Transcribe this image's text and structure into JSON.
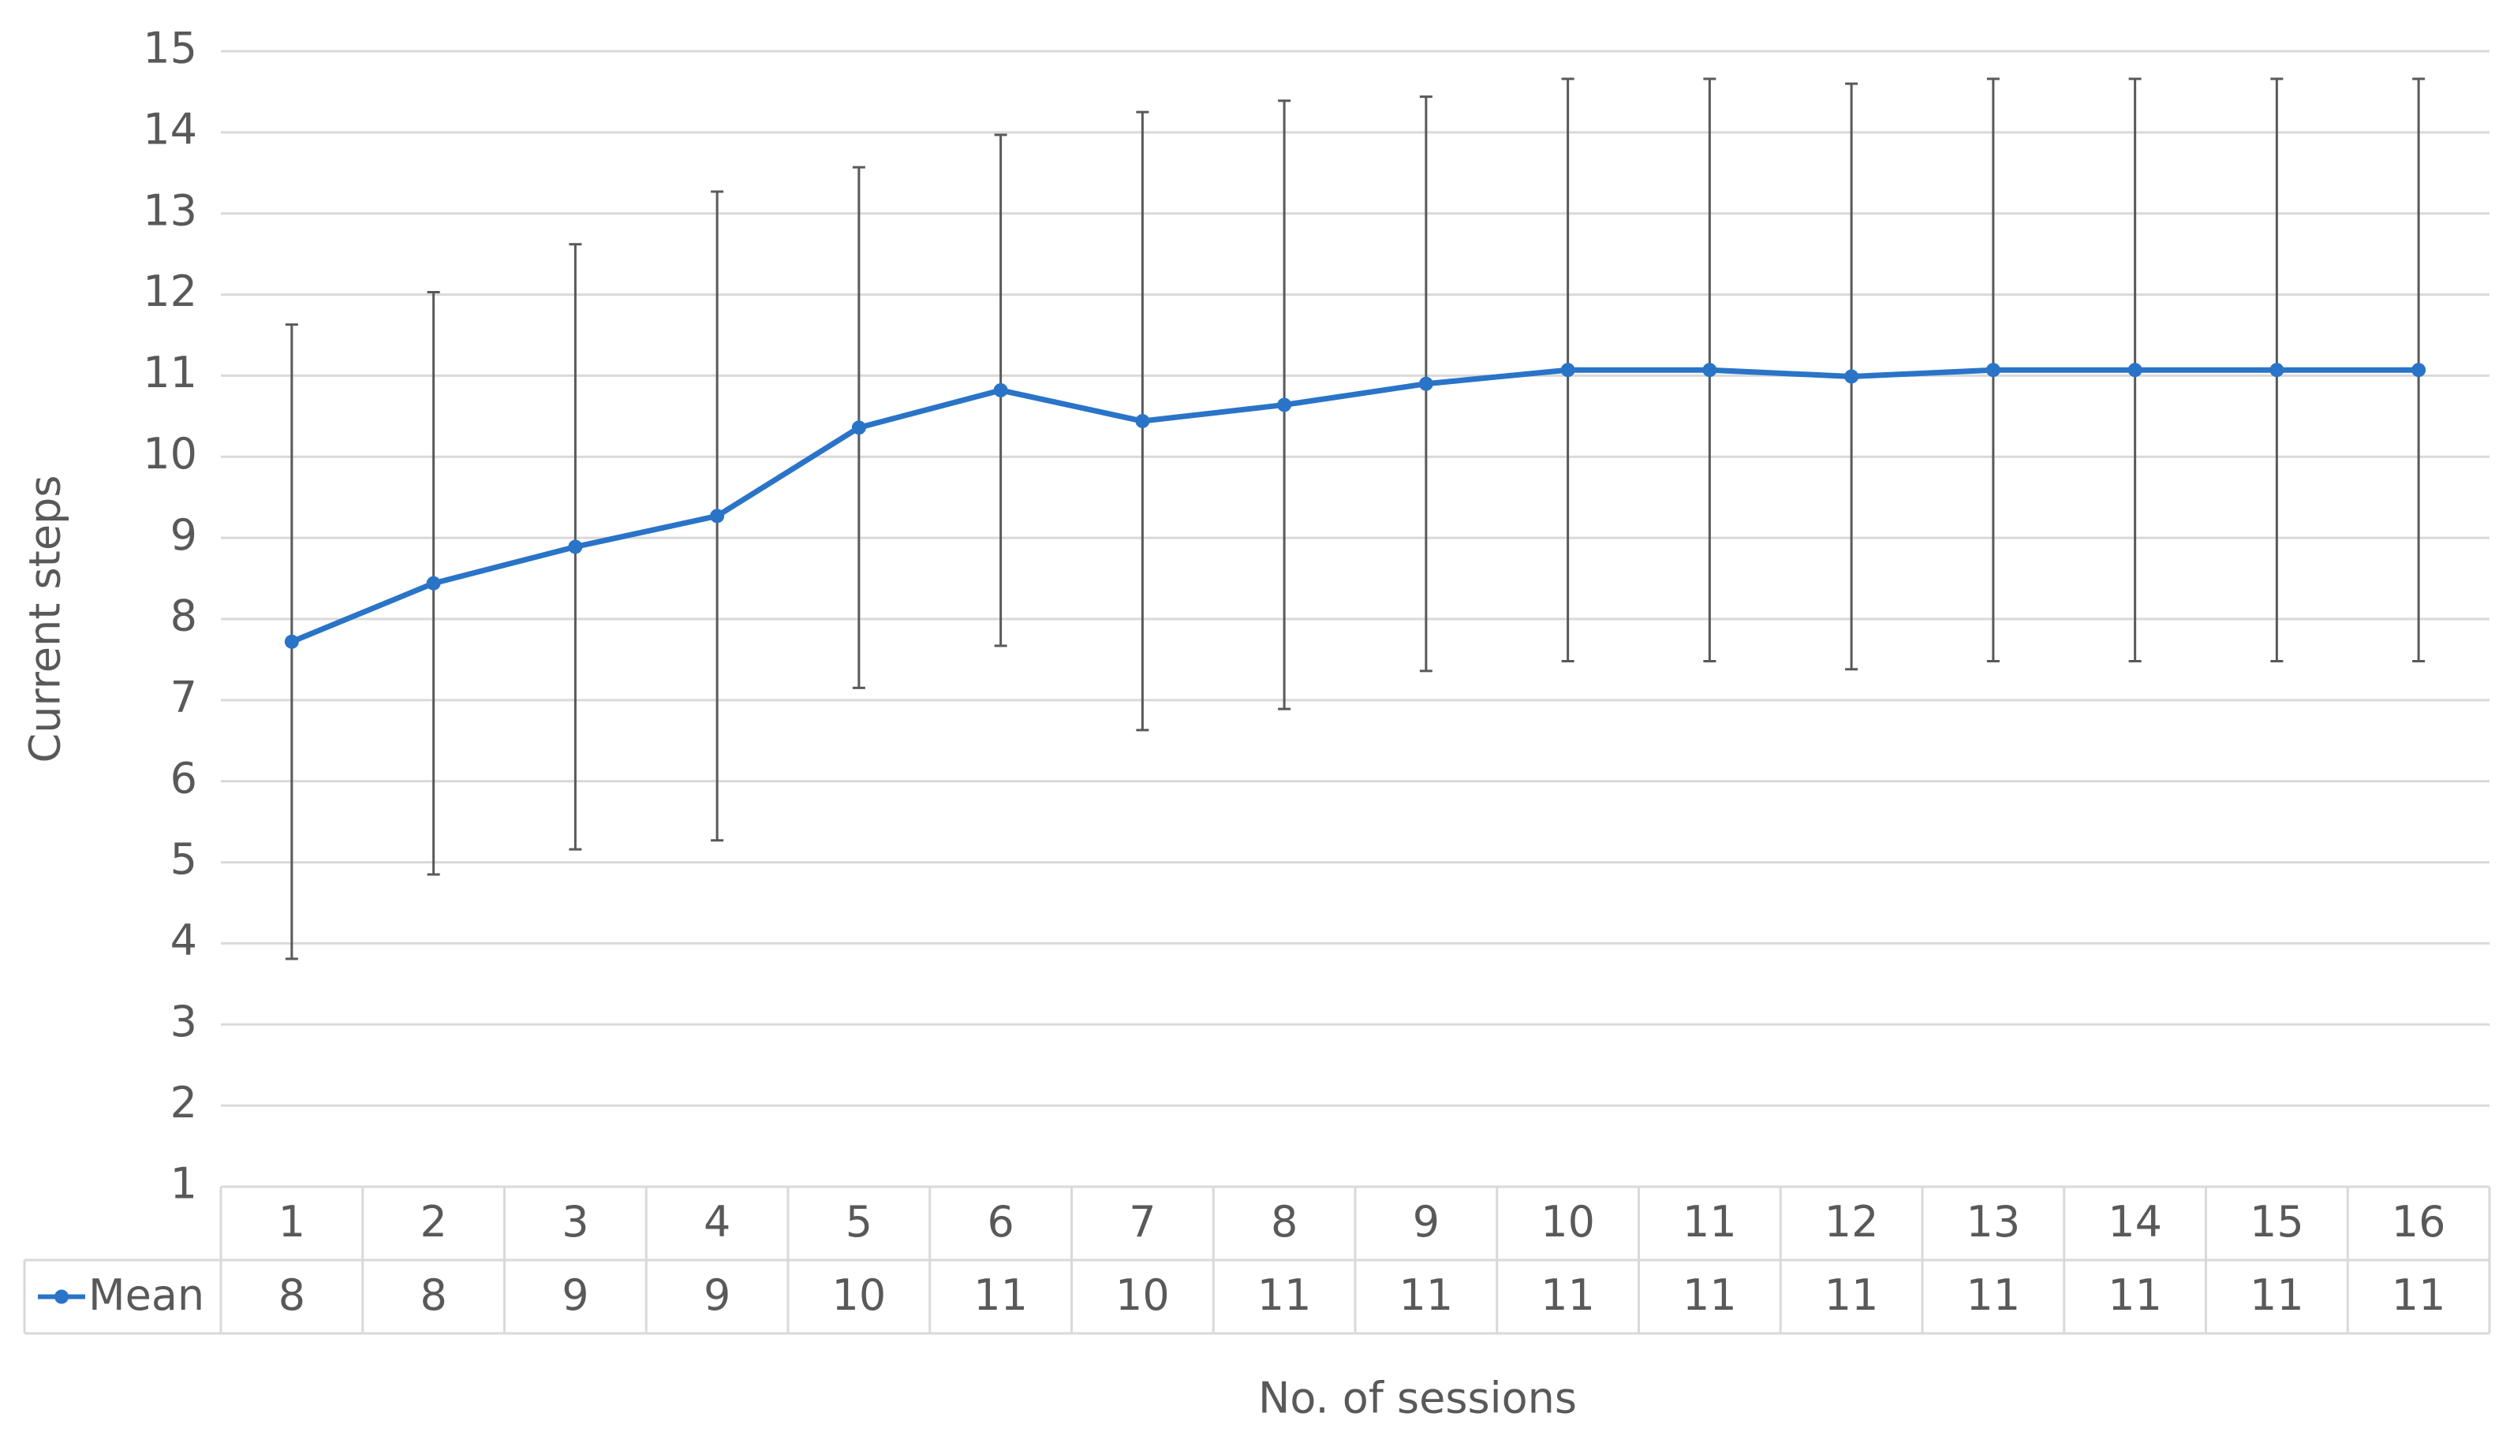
{
  "chart_data": {
    "type": "line",
    "y_label": "Current steps",
    "x_label": "No. of sessions",
    "categories": [
      "1",
      "2",
      "3",
      "4",
      "5",
      "6",
      "7",
      "8",
      "9",
      "10",
      "11",
      "12",
      "13",
      "14",
      "15",
      "16"
    ],
    "series": [
      {
        "name": "Mean",
        "color": "#2a74c8",
        "values": [
          7.72,
          8.44,
          8.89,
          9.27,
          10.36,
          10.82,
          10.44,
          10.64,
          10.9,
          11.07,
          11.07,
          10.99,
          11.07,
          11.07,
          11.07,
          11.07
        ],
        "value_labels": [
          "8",
          "8",
          "9",
          "9",
          "10",
          "11",
          "10",
          "11",
          "11",
          "11",
          "11",
          "11",
          "11",
          "11",
          "11",
          "11"
        ],
        "errors": [
          3.91,
          3.59,
          3.73,
          4.0,
          3.21,
          3.15,
          3.81,
          3.75,
          3.54,
          3.59,
          3.59,
          3.61,
          3.59,
          3.59,
          3.59,
          3.59
        ]
      }
    ],
    "ylim": [
      1,
      15
    ],
    "yticks": [
      1,
      2,
      3,
      4,
      5,
      6,
      7,
      8,
      9,
      10,
      11,
      12,
      13,
      14,
      15
    ],
    "grid": true,
    "data_table": true
  }
}
